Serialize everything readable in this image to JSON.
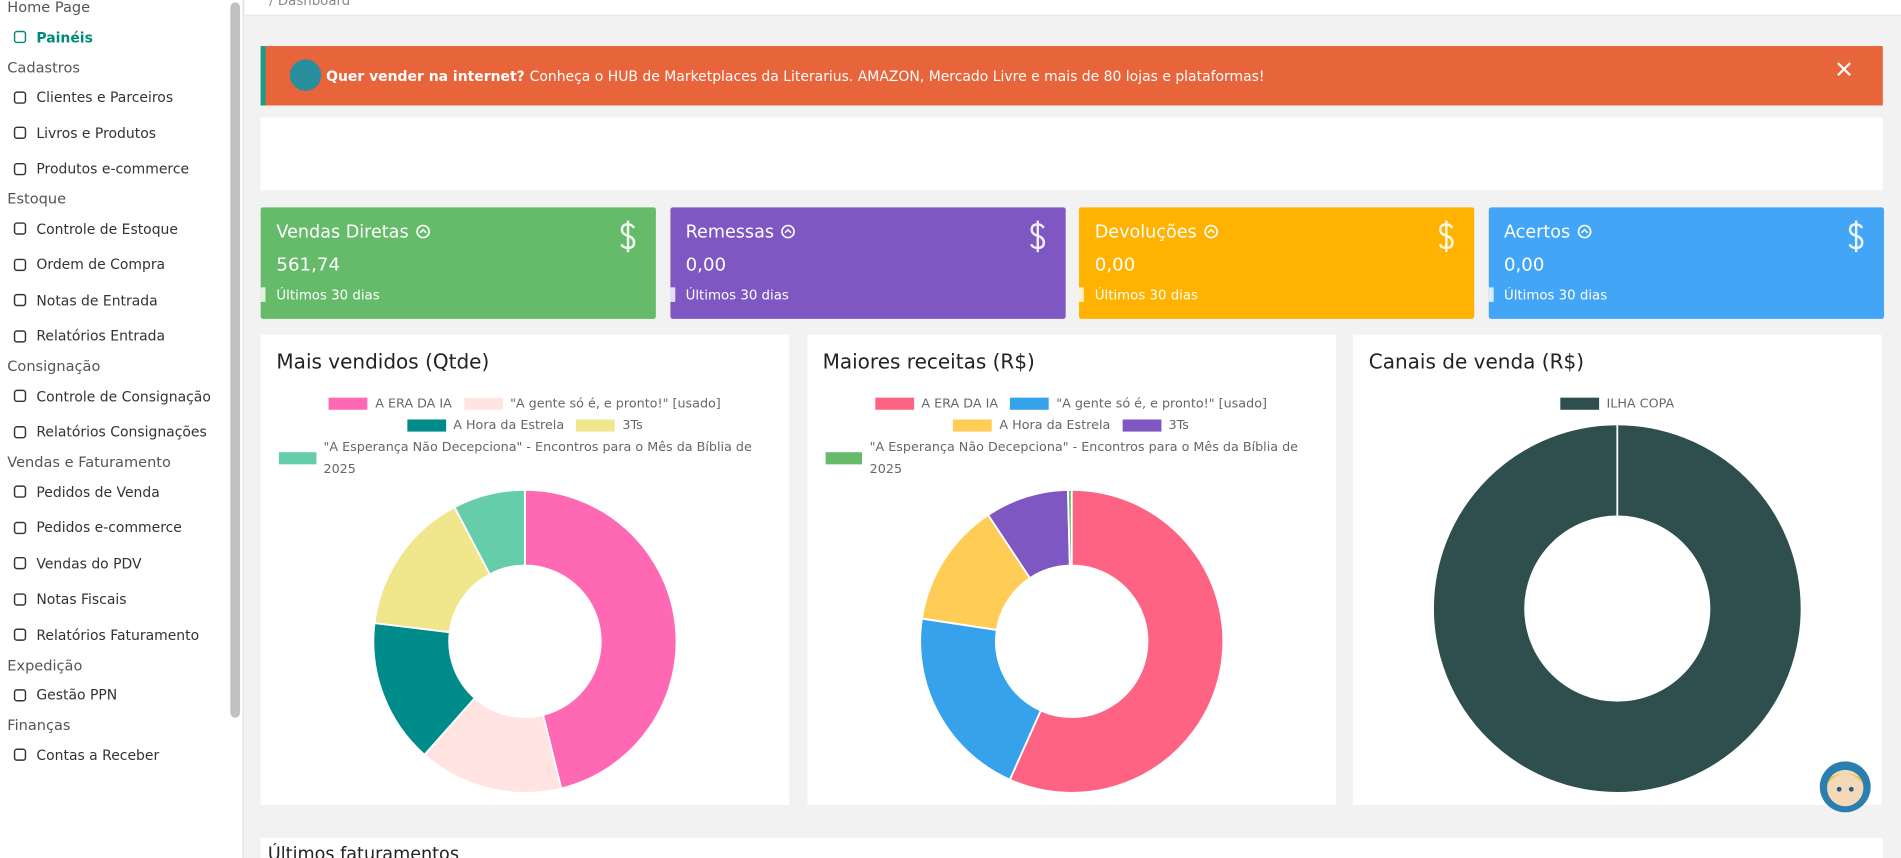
{
  "breadcrumb": "/ Dashboard",
  "sidebar": [
    {
      "title": "Home Page",
      "items": [
        "Painéis"
      ]
    },
    {
      "title": "Cadastros",
      "items": [
        "Clientes e Parceiros",
        "Livros e Produtos",
        "Produtos e-commerce"
      ]
    },
    {
      "title": "Estoque",
      "items": [
        "Controle de Estoque",
        "Ordem de Compra",
        "Notas de Entrada",
        "Relatórios Entrada"
      ]
    },
    {
      "title": "Consignação",
      "items": [
        "Controle de Consignação",
        "Relatórios Consignações"
      ]
    },
    {
      "title": "Vendas e Faturamento",
      "items": [
        "Pedidos de Venda",
        "Pedidos e-commerce",
        "Vendas do PDV",
        "Notas Fiscais",
        "Relatórios Faturamento"
      ]
    },
    {
      "title": "Expedição",
      "items": [
        "Gestão PPN"
      ]
    },
    {
      "title": "Finanças",
      "items": [
        "Contas a Receber"
      ]
    }
  ],
  "banner": {
    "lead": "Quer vender na internet?",
    "text": "Conheça o HUB de Marketplaces da Literarius. AMAZON, Mercado Livre e mais de 80 lojas e plataformas!"
  },
  "cards": [
    {
      "title": "Vendas Diretas",
      "value": "561,74",
      "period": "Últimos 30 dias",
      "color": "#66bb6a"
    },
    {
      "title": "Remessas",
      "value": "0,00",
      "period": "Últimos 30 dias",
      "color": "#7e57c2"
    },
    {
      "title": "Devoluções",
      "value": "0,00",
      "period": "Últimos 30 dias",
      "color": "#ffb300"
    },
    {
      "title": "Acertos",
      "value": "0,00",
      "period": "Últimos 30 dias",
      "color": "#42a5f5"
    }
  ],
  "chart_data": [
    {
      "type": "doughnut",
      "title": "Mais vendidos (Qtde)",
      "categories": [
        "A ERA DA IA",
        "\"A gente só é, e pronto!\" [usado]",
        "A Hora da Estrela",
        "3Ts",
        "\"A Esperança Não Decepciona\" - Encontros para o Mês da Bíblia de 2025"
      ],
      "values": [
        6,
        2,
        2,
        2,
        1
      ],
      "colors": [
        "#ff69b4",
        "#ffe4e1",
        "#008b8b",
        "#f0e68c",
        "#66cdaa"
      ]
    },
    {
      "type": "doughnut",
      "title": "Maiores receitas (R$)",
      "categories": [
        "A ERA DA IA",
        "\"A gente só é, e pronto!\" [usado]",
        "A Hora da Estrela",
        "3Ts",
        "\"A Esperança Não Decepciona\" - Encontros para o Mês da Bíblia de 2025"
      ],
      "values": [
        56.7,
        20.7,
        13.3,
        8.9,
        0.4
      ],
      "colors": [
        "#ff6384",
        "#36a2eb",
        "#ffcd56",
        "#7e57c2",
        "#66bb6a"
      ]
    },
    {
      "type": "doughnut",
      "title": "Canais de venda (R$)",
      "categories": [
        "ILHA COPA"
      ],
      "values": [
        100
      ],
      "colors": [
        "#2f4f4f"
      ]
    }
  ],
  "footer_title": "Últimos faturamentos"
}
